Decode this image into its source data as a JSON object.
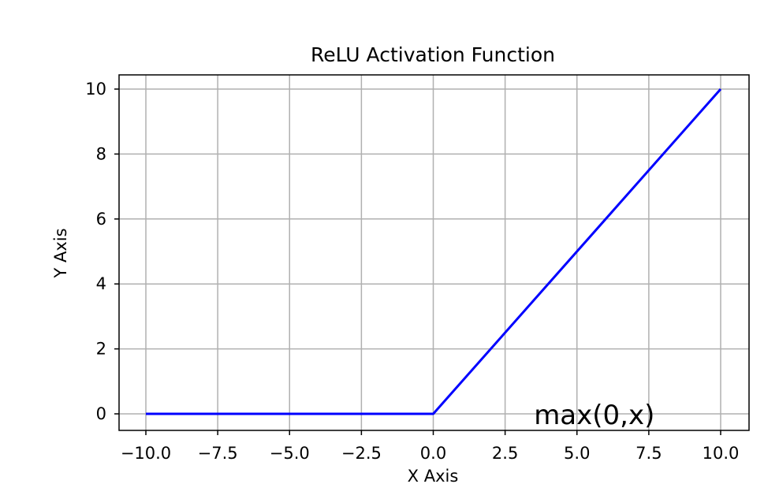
{
  "chart_data": {
    "type": "line",
    "title": "ReLU Activation Function",
    "xlabel": "X Axis",
    "ylabel": "Y Axis",
    "xlim": [
      -10.0,
      10.0
    ],
    "ylim": [
      0,
      10
    ],
    "x_ticks": [
      "−10.0",
      "−7.5",
      "−5.0",
      "−2.5",
      "0.0",
      "2.5",
      "5.0",
      "7.5",
      "10.0"
    ],
    "x_tick_values": [
      -10,
      -7.5,
      -5,
      -2.5,
      0,
      2.5,
      5,
      7.5,
      10
    ],
    "y_ticks": [
      "0",
      "2",
      "4",
      "6",
      "8",
      "10"
    ],
    "y_tick_values": [
      0,
      2,
      4,
      6,
      8,
      10
    ],
    "grid": true,
    "series": [
      {
        "color": "#0000ff",
        "x": [
          -10,
          0,
          10
        ],
        "y": [
          0,
          0,
          10
        ]
      }
    ],
    "annotation": {
      "text": "max(0,x)",
      "x": 6.0,
      "y": 1.0
    }
  }
}
